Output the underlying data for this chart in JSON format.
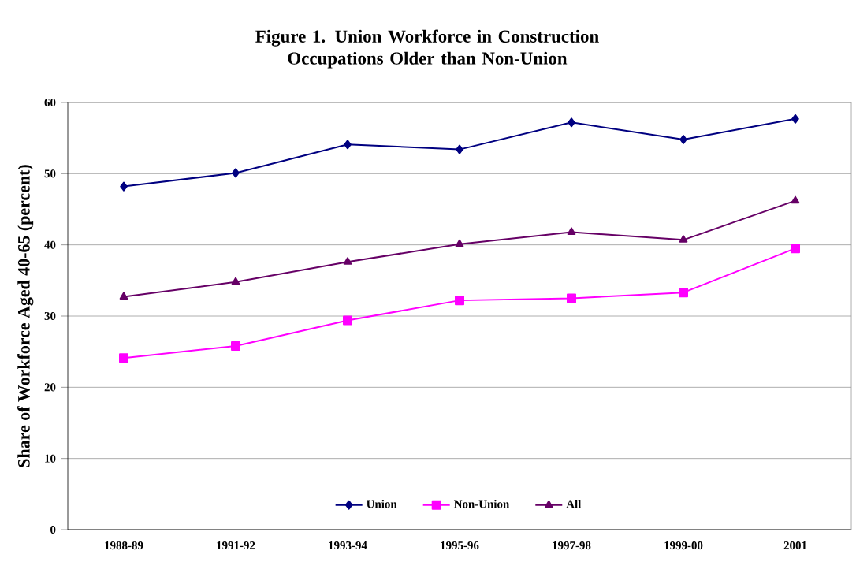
{
  "chart_data": {
    "type": "line",
    "title": "Figure 1. Union Workforce in Construction Occupations Older than Non-Union",
    "ylabel": "Share of Workforce Aged 40-65 (percent)",
    "categories": [
      "1988-89",
      "1991-92",
      "1993-94",
      "1995-96",
      "1997-98",
      "1999-00",
      "2001"
    ],
    "series": [
      {
        "name": "Union",
        "color": "#000080",
        "marker": "diamond",
        "values": [
          48.2,
          50.1,
          54.1,
          53.4,
          57.2,
          54.8,
          57.7
        ]
      },
      {
        "name": "Non-Union",
        "color": "#ff00ff",
        "marker": "square",
        "values": [
          24.1,
          25.8,
          29.4,
          32.2,
          32.5,
          33.3,
          39.5
        ]
      },
      {
        "name": "All",
        "color": "#660066",
        "marker": "triangle",
        "values": [
          32.7,
          34.8,
          37.6,
          40.1,
          41.8,
          40.7,
          46.2
        ]
      }
    ],
    "ylim": [
      0,
      60
    ],
    "yticks": [
      0,
      10,
      20,
      30,
      40,
      50,
      60
    ],
    "grid": "y",
    "legend": "bottom",
    "line_style": "solid"
  }
}
